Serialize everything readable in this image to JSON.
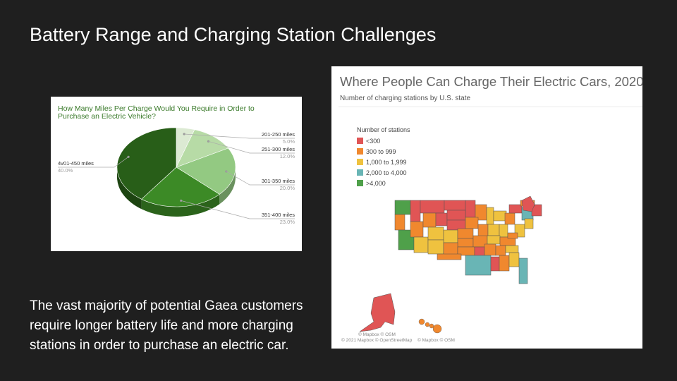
{
  "slide": {
    "title": "Battery Range and Charging Station Challenges",
    "body": "The vast majority of potential Gaea customers require longer battery life and more charging stations in order to purchase an electric car."
  },
  "chart_data": [
    {
      "type": "pie",
      "title": "How Many Miles Per Charge Would You Require in Order to Purchase an Electric Vehicle?",
      "categories": [
        "201-250 miles",
        "251-300 miles",
        "301-350 miles",
        "351-400 miles",
        "4v01-450 miles"
      ],
      "values": [
        5.0,
        12.0,
        20.0,
        23.0,
        40.0
      ],
      "value_labels": [
        "5.0%",
        "12.0%",
        "20.0%",
        "23.0%",
        "40.0%"
      ],
      "colors": [
        "#dcead3",
        "#b7dba6",
        "#93c982",
        "#3c8a26",
        "#285e18"
      ],
      "style": "3d"
    },
    {
      "type": "map",
      "title": "Where People Can Charge Their Electric Cars, 2020",
      "subtitle": "Number of charging stations by U.S. state",
      "legend_title": "Number of stations",
      "legend": [
        {
          "label": "<300",
          "color": "#e05555"
        },
        {
          "label": "300 to 999",
          "color": "#f0882e"
        },
        {
          "label": "1,000 to 1,999",
          "color": "#efc23f"
        },
        {
          "label": "2,000 to 4,000",
          "color": "#69b5b5"
        },
        {
          "label": ">4,000",
          "color": "#4fa04a"
        }
      ],
      "attribution_main": "© 2021 Mapbox © OpenStreetMap",
      "attribution_inset": "© Mapbox © OSM"
    }
  ]
}
